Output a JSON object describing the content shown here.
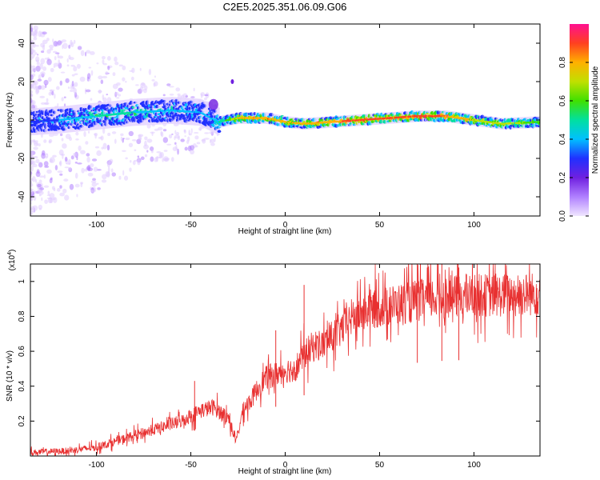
{
  "figure": {
    "title": "C2E5.2025.351.06.09.G06"
  },
  "chart_data": [
    {
      "type": "heatmap",
      "xlabel": "Height of straight line (km)",
      "ylabel": "Frequency (Hz)",
      "xlim": [
        -135,
        135
      ],
      "ylim": [
        -50,
        50
      ],
      "xticks": [
        -100,
        -50,
        0,
        50,
        100
      ],
      "yticks": [
        -40,
        -20,
        0,
        20,
        40
      ],
      "colorbar": {
        "label": "Normalized spectral amplitude",
        "range": [
          0,
          1
        ],
        "ticks": [
          "0.0",
          "0.2",
          "0.4",
          "0.6",
          "0.8"
        ],
        "tick_values": [
          0.0,
          0.2,
          0.4,
          0.6,
          0.8
        ],
        "colors": [
          "#f0e6ff",
          "#b080ff",
          "#7020e0",
          "#2030ff",
          "#00c0ff",
          "#00e0a0",
          "#40e000",
          "#c0e000",
          "#ffb000",
          "#ff4020",
          "#ff1090"
        ]
      },
      "ridge": {
        "x": [
          -135,
          -120,
          -100,
          -80,
          -60,
          -45,
          -35,
          -25,
          -10,
          0,
          10,
          25,
          40,
          55,
          70,
          85,
          100,
          115,
          135
        ],
        "frequency": [
          -1,
          0,
          2,
          4,
          5,
          4,
          -1,
          1,
          1,
          -1,
          -2,
          -1,
          0,
          1,
          2,
          2,
          0,
          -2,
          -1
        ],
        "amplitude": [
          0.3,
          0.35,
          0.45,
          0.45,
          0.4,
          0.35,
          0.45,
          0.75,
          0.75,
          0.75,
          0.8,
          0.8,
          0.95,
          0.85,
          0.9,
          0.85,
          0.75,
          0.7,
          0.6
        ]
      }
    },
    {
      "type": "line",
      "xlabel": "Height of straight line (km)",
      "ylabel": "SNR (10 * v/v)",
      "scale_label": "(x10",
      "scale_exponent": "4",
      "xlim": [
        -135,
        135
      ],
      "ylim": [
        0,
        1.1
      ],
      "xticks": [
        -100,
        -50,
        0,
        50,
        100
      ],
      "yticks": [
        0.2,
        0.4,
        0.6,
        0.8,
        1
      ],
      "series_color": "#e83030",
      "envelope": {
        "x": [
          -135,
          -115,
          -100,
          -85,
          -70,
          -55,
          -45,
          -38,
          -30,
          -26,
          -22,
          -18,
          -14,
          -10,
          -5,
          0,
          5,
          10,
          15,
          20,
          25,
          30,
          35,
          45,
          55,
          65,
          75,
          85,
          100,
          115,
          135
        ],
        "y": [
          0.02,
          0.03,
          0.05,
          0.1,
          0.15,
          0.2,
          0.26,
          0.28,
          0.22,
          0.08,
          0.28,
          0.32,
          0.4,
          0.45,
          0.47,
          0.49,
          0.5,
          0.58,
          0.63,
          0.64,
          0.68,
          0.73,
          0.79,
          0.84,
          0.86,
          0.88,
          0.9,
          0.91,
          0.92,
          0.92,
          0.93
        ]
      },
      "spikes": [
        {
          "x": 10,
          "y": 0.98
        },
        {
          "x": -5,
          "y": 0.72
        },
        {
          "x": -48,
          "y": 0.43
        },
        {
          "x": 70,
          "y": 1.1
        },
        {
          "x": 83,
          "y": 1.1
        },
        {
          "x": 92,
          "y": 1.08
        }
      ]
    }
  ]
}
